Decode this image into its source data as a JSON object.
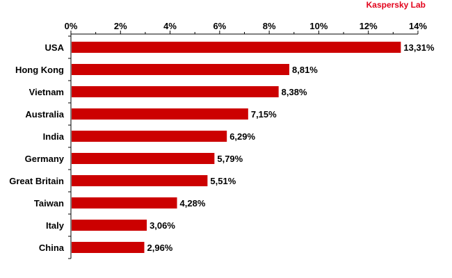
{
  "brand": "Kaspersky Lab",
  "chart_data": {
    "type": "bar",
    "orientation": "horizontal",
    "categories": [
      "USA",
      "Hong Kong",
      "Vietnam",
      "Australia",
      "India",
      "Germany",
      "Great Britain",
      "Taiwan",
      "Italy",
      "China"
    ],
    "values": [
      13.31,
      8.81,
      8.38,
      7.15,
      6.29,
      5.79,
      5.51,
      4.28,
      3.06,
      2.96
    ],
    "value_labels": [
      "13,31%",
      "8,81%",
      "8,38%",
      "7,15%",
      "6,29%",
      "5,79%",
      "5,51%",
      "4,28%",
      "3,06%",
      "2,96%"
    ],
    "xlim": [
      0,
      14
    ],
    "xticks": [
      0,
      2,
      4,
      6,
      8,
      10,
      12,
      14
    ],
    "xtick_labels": [
      "0%",
      "2%",
      "4%",
      "6%",
      "8%",
      "10%",
      "12%",
      "14%"
    ],
    "x_axis_position": "top",
    "grid": false,
    "bar_color": "#cc0000"
  }
}
